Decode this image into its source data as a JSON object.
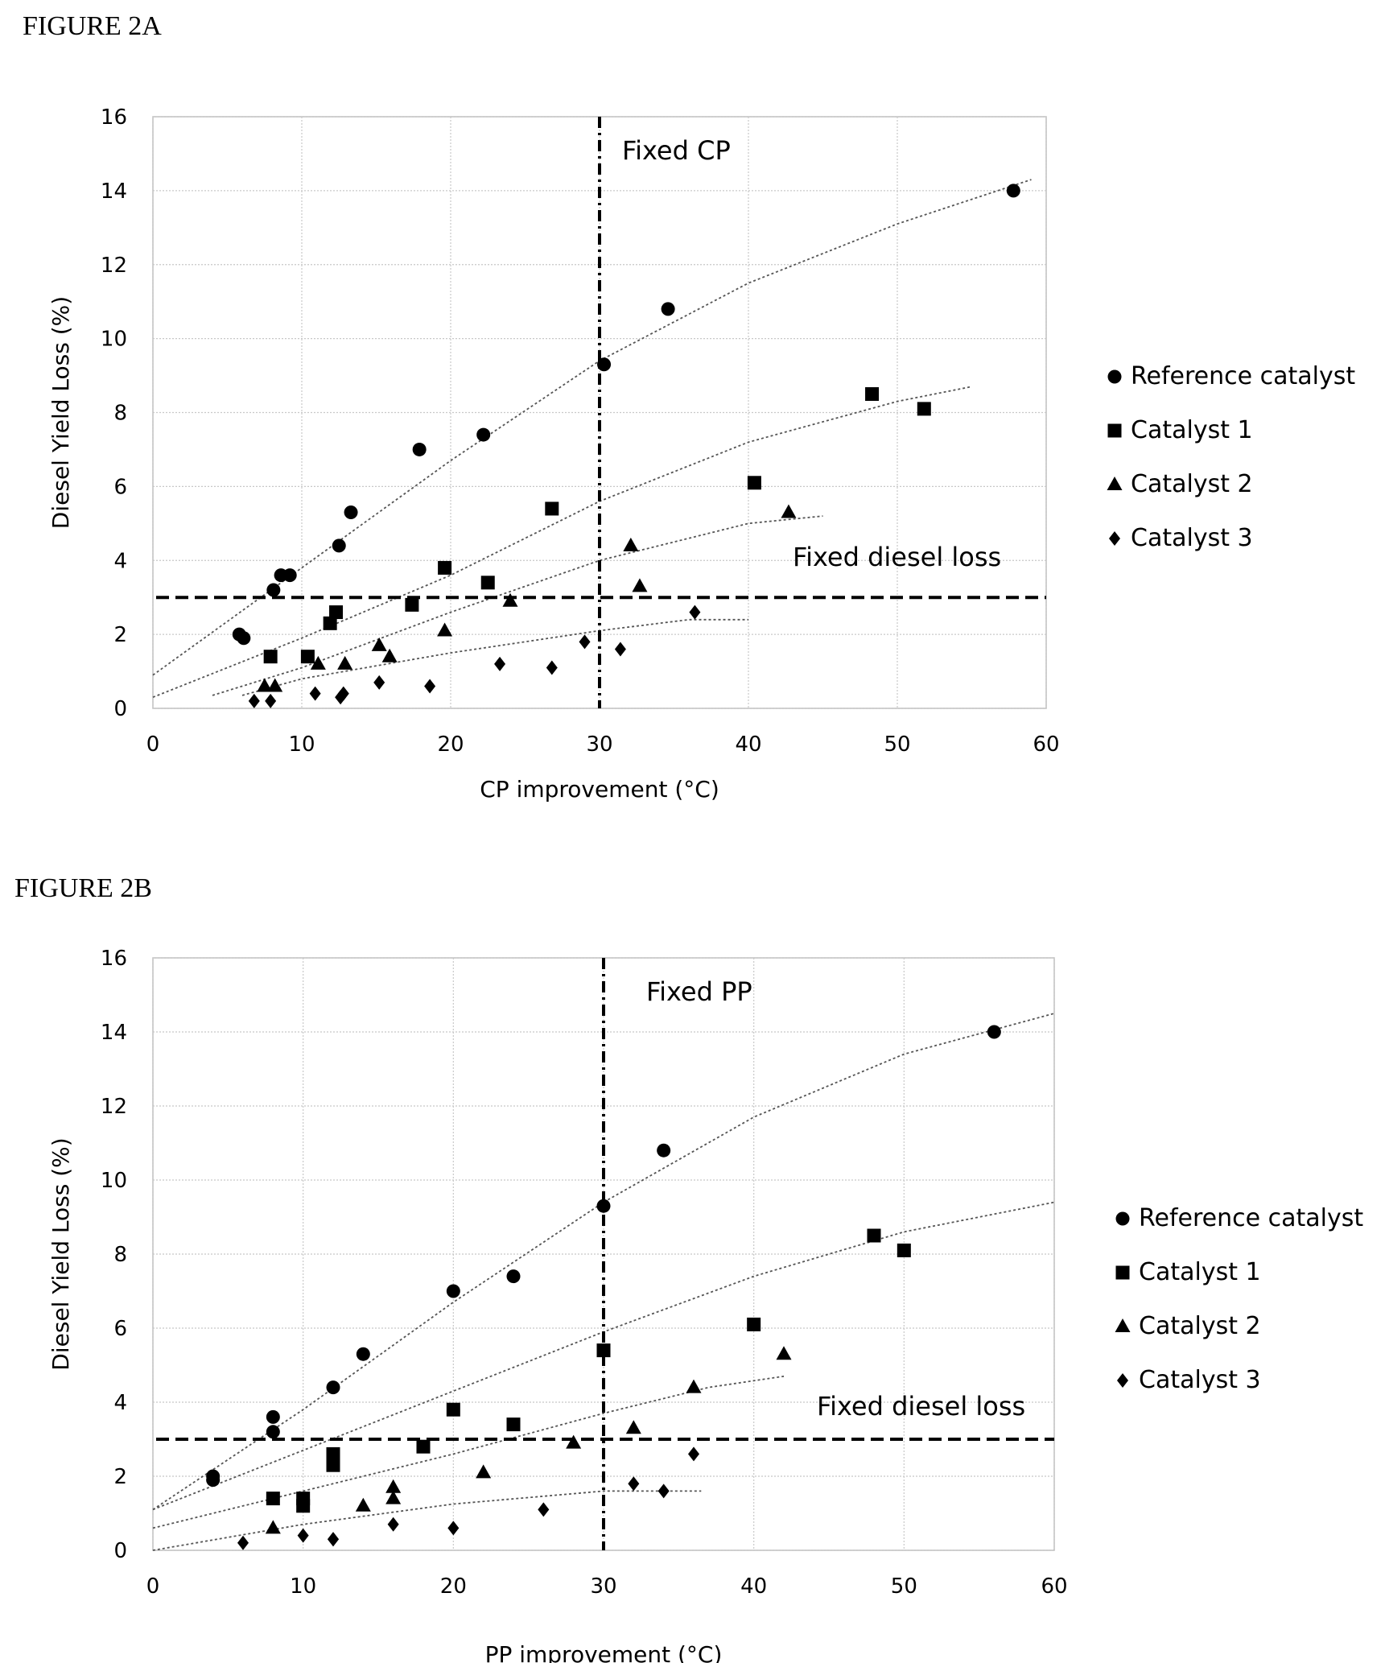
{
  "chart_data": [
    {
      "type": "scatter",
      "figure_label": "FIGURE 2A",
      "xlabel": "CP improvement (°C)",
      "ylabel": "Diesel Yield Loss (%)",
      "xlim": [
        0,
        60
      ],
      "ylim": [
        0,
        16
      ],
      "xticks": [
        0,
        10,
        20,
        30,
        40,
        50,
        60
      ],
      "yticks": [
        0,
        2,
        4,
        6,
        8,
        10,
        12,
        14,
        16
      ],
      "grid": true,
      "legend_position": "right",
      "reference_lines": [
        {
          "orientation": "vertical",
          "value": 30,
          "style": "dash-dot",
          "label": "Fixed CP"
        },
        {
          "orientation": "horizontal",
          "value": 3,
          "style": "dashed",
          "label": "Fixed diesel loss"
        }
      ],
      "series": [
        {
          "name": "Reference catalyst",
          "marker": "circle",
          "points": [
            [
              5.8,
              2.0
            ],
            [
              6.1,
              1.9
            ],
            [
              8.1,
              3.2
            ],
            [
              8.6,
              3.6
            ],
            [
              9.2,
              3.6
            ],
            [
              12.5,
              4.4
            ],
            [
              13.3,
              5.3
            ],
            [
              17.9,
              7.0
            ],
            [
              22.2,
              7.4
            ],
            [
              30.3,
              9.3
            ],
            [
              34.6,
              10.8
            ],
            [
              57.8,
              14.0
            ]
          ],
          "trend": [
            [
              0,
              0.9
            ],
            [
              10,
              3.8
            ],
            [
              20,
              6.7
            ],
            [
              30,
              9.4
            ],
            [
              40,
              11.5
            ],
            [
              50,
              13.1
            ],
            [
              59,
              14.3
            ]
          ]
        },
        {
          "name": "Catalyst 1",
          "marker": "square",
          "points": [
            [
              7.9,
              1.4
            ],
            [
              10.4,
              1.4
            ],
            [
              11.9,
              2.3
            ],
            [
              12.3,
              2.6
            ],
            [
              17.4,
              2.8
            ],
            [
              19.6,
              3.8
            ],
            [
              22.5,
              3.4
            ],
            [
              26.8,
              5.4
            ],
            [
              40.4,
              6.1
            ],
            [
              48.3,
              8.5
            ],
            [
              51.8,
              8.1
            ]
          ],
          "trend": [
            [
              0,
              0.3
            ],
            [
              10,
              1.9
            ],
            [
              20,
              3.6
            ],
            [
              30,
              5.6
            ],
            [
              40,
              7.2
            ],
            [
              50,
              8.3
            ],
            [
              55,
              8.7
            ]
          ]
        },
        {
          "name": "Catalyst 2",
          "marker": "triangle",
          "points": [
            [
              7.5,
              0.6
            ],
            [
              8.2,
              0.6
            ],
            [
              11.1,
              1.2
            ],
            [
              12.9,
              1.2
            ],
            [
              15.2,
              1.7
            ],
            [
              15.9,
              1.4
            ],
            [
              19.6,
              2.1
            ],
            [
              24.0,
              2.9
            ],
            [
              32.1,
              4.4
            ],
            [
              32.7,
              3.3
            ],
            [
              42.7,
              5.3
            ]
          ],
          "trend": [
            [
              4,
              0.35
            ],
            [
              10,
              1.1
            ],
            [
              20,
              2.6
            ],
            [
              30,
              4.0
            ],
            [
              40,
              5.0
            ],
            [
              45,
              5.2
            ]
          ]
        },
        {
          "name": "Catalyst 3",
          "marker": "diamond",
          "points": [
            [
              6.8,
              0.2
            ],
            [
              7.9,
              0.2
            ],
            [
              10.9,
              0.4
            ],
            [
              12.6,
              0.3
            ],
            [
              12.8,
              0.4
            ],
            [
              15.2,
              0.7
            ],
            [
              18.6,
              0.6
            ],
            [
              23.3,
              1.2
            ],
            [
              26.8,
              1.1
            ],
            [
              29.0,
              1.8
            ],
            [
              31.4,
              1.6
            ],
            [
              36.4,
              2.6
            ]
          ],
          "trend": [
            [
              6,
              0.35
            ],
            [
              10,
              0.8
            ],
            [
              20,
              1.5
            ],
            [
              30,
              2.1
            ],
            [
              36,
              2.4
            ],
            [
              40,
              2.4
            ]
          ]
        }
      ]
    },
    {
      "type": "scatter",
      "figure_label": "FIGURE 2B",
      "xlabel": "PP improvement (°C)",
      "ylabel": "Diesel Yield Loss (%)",
      "xlim": [
        0,
        60
      ],
      "ylim": [
        0,
        16
      ],
      "xticks": [
        0,
        10,
        20,
        30,
        40,
        50,
        60
      ],
      "yticks": [
        0,
        2,
        4,
        6,
        8,
        10,
        12,
        14,
        16
      ],
      "grid": true,
      "legend_position": "right",
      "reference_lines": [
        {
          "orientation": "vertical",
          "value": 30,
          "style": "dash-dot",
          "label": "Fixed PP"
        },
        {
          "orientation": "horizontal",
          "value": 3,
          "style": "dashed",
          "label": "Fixed diesel loss"
        }
      ],
      "series": [
        {
          "name": "Reference catalyst",
          "marker": "circle",
          "points": [
            [
              4,
              2.0
            ],
            [
              4,
              1.9
            ],
            [
              8,
              3.6
            ],
            [
              8,
              3.2
            ],
            [
              12,
              4.4
            ],
            [
              14,
              5.3
            ],
            [
              20,
              7.0
            ],
            [
              24,
              7.4
            ],
            [
              30,
              9.3
            ],
            [
              34,
              10.8
            ],
            [
              56,
              14.0
            ]
          ],
          "trend": [
            [
              0,
              1.1
            ],
            [
              10,
              3.8
            ],
            [
              20,
              6.7
            ],
            [
              30,
              9.4
            ],
            [
              40,
              11.7
            ],
            [
              50,
              13.4
            ],
            [
              60,
              14.5
            ]
          ]
        },
        {
          "name": "Catalyst 1",
          "marker": "square",
          "points": [
            [
              8,
              1.4
            ],
            [
              10,
              1.4
            ],
            [
              10,
              1.2
            ],
            [
              12,
              2.6
            ],
            [
              12,
              2.3
            ],
            [
              18,
              2.8
            ],
            [
              20,
              3.8
            ],
            [
              24,
              3.4
            ],
            [
              30,
              5.4
            ],
            [
              40,
              6.1
            ],
            [
              48,
              8.5
            ],
            [
              50,
              8.1
            ]
          ],
          "trend": [
            [
              0,
              1.1
            ],
            [
              10,
              2.7
            ],
            [
              20,
              4.3
            ],
            [
              30,
              5.9
            ],
            [
              40,
              7.4
            ],
            [
              50,
              8.6
            ],
            [
              60,
              9.4
            ]
          ]
        },
        {
          "name": "Catalyst 2",
          "marker": "triangle",
          "points": [
            [
              8,
              0.6
            ],
            [
              14,
              1.2
            ],
            [
              16,
              1.7
            ],
            [
              16,
              1.4
            ],
            [
              22,
              2.1
            ],
            [
              28,
              2.9
            ],
            [
              32,
              3.3
            ],
            [
              36,
              4.4
            ],
            [
              42,
              5.3
            ]
          ],
          "trend": [
            [
              0,
              0.6
            ],
            [
              10,
              1.6
            ],
            [
              20,
              2.6
            ],
            [
              30,
              3.7
            ],
            [
              37,
              4.4
            ],
            [
              42,
              4.7
            ]
          ]
        },
        {
          "name": "Catalyst 3",
          "marker": "diamond",
          "points": [
            [
              6,
              0.2
            ],
            [
              10,
              0.4
            ],
            [
              12,
              0.3
            ],
            [
              12,
              0.3
            ],
            [
              16,
              0.7
            ],
            [
              20,
              0.6
            ],
            [
              26,
              1.1
            ],
            [
              32,
              1.8
            ],
            [
              34,
              1.6
            ],
            [
              36,
              2.6
            ]
          ],
          "trend": [
            [
              0,
              0.0
            ],
            [
              10,
              0.7
            ],
            [
              20,
              1.25
            ],
            [
              30,
              1.6
            ],
            [
              36.5,
              1.6
            ]
          ]
        }
      ]
    }
  ]
}
